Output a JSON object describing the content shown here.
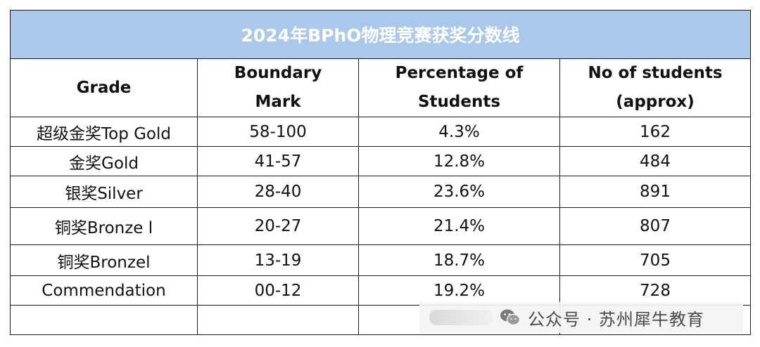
{
  "title": "2024年BPhO物理竞赛获奖分数线",
  "headers": {
    "grade": "Grade",
    "boundary_line1": "Boundary",
    "boundary_line2": "Mark",
    "percentage_line1": "Percentage of",
    "percentage_line2": "Students",
    "students_line1": "No of students",
    "students_line2": "(approx)"
  },
  "rows": [
    {
      "grade": "超级金奖Top Gold",
      "mark": "58-100",
      "percentage": "4.3%",
      "students": "162"
    },
    {
      "grade": "金奖Gold",
      "mark": "41-57",
      "percentage": "12.8%",
      "students": "484"
    },
    {
      "grade": "银奖Silver",
      "mark": "28-40",
      "percentage": "23.6%",
      "students": "891"
    },
    {
      "grade": "铜奖Bronze l",
      "mark": "20-27",
      "percentage": "21.4%",
      "students": "807"
    },
    {
      "grade": "铜奖Bronzel",
      "mark": "13-19",
      "percentage": "18.7%",
      "students": "705"
    },
    {
      "grade": "Commendation",
      "mark": "00-12",
      "percentage": "19.2%",
      "students": "728"
    },
    {
      "grade": "",
      "mark": "",
      "percentage": "",
      "students": ""
    }
  ],
  "watermark": {
    "icon": "wechat-icon",
    "text": "公众号 · 苏州犀牛教育"
  },
  "colors": {
    "title_bg": "#a9c8ec",
    "title_text": "#ffffff",
    "border": "#1a1a1a"
  }
}
